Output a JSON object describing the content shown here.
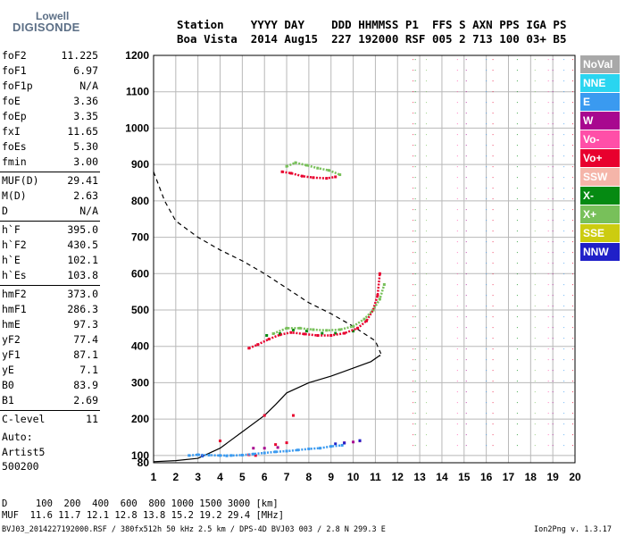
{
  "logo": {
    "top": "Lowell",
    "bottom": "DIGISONDE"
  },
  "header": {
    "line1": "Station    YYYY DAY    DDD HHMMSS P1  FFS S AXN PPS IGA PS",
    "line2": "Boa Vista  2014 Aug15  227 192000 RSF 005 2 713 100 03+ B5"
  },
  "params": [
    {
      "name": "foF2",
      "value": "11.225"
    },
    {
      "name": "foF1",
      "value": "6.97"
    },
    {
      "name": "foF1p",
      "value": "N/A"
    },
    {
      "name": "foE",
      "value": "3.36"
    },
    {
      "name": "foEp",
      "value": "3.35"
    },
    {
      "name": "fxI",
      "value": "11.65"
    },
    {
      "name": "foEs",
      "value": "5.30"
    },
    {
      "name": "fmin",
      "value": "3.00"
    },
    {
      "name": "MUF(D)",
      "value": "29.41"
    },
    {
      "name": "M(D)",
      "value": "2.63"
    },
    {
      "name": "D",
      "value": "N/A"
    },
    {
      "name": "h`F",
      "value": "395.0"
    },
    {
      "name": "h`F2",
      "value": "430.5"
    },
    {
      "name": "h`E",
      "value": "102.1"
    },
    {
      "name": "h`Es",
      "value": "103.8"
    },
    {
      "name": "hmF2",
      "value": "373.0"
    },
    {
      "name": "hmF1",
      "value": "286.3"
    },
    {
      "name": "hmE",
      "value": "97.3"
    },
    {
      "name": "yF2",
      "value": "77.4"
    },
    {
      "name": "yF1",
      "value": "87.1"
    },
    {
      "name": "yE",
      "value": "7.1"
    },
    {
      "name": "B0",
      "value": "83.9"
    },
    {
      "name": "B1",
      "value": "2.69"
    },
    {
      "name": "C-level",
      "value": "11"
    }
  ],
  "aux": {
    "line1": "Auto:",
    "line2": "Artist5",
    "line3": "500200"
  },
  "legend": [
    {
      "label": "NoVal",
      "color": "#a8a8a8"
    },
    {
      "label": "NNE",
      "color": "#2ad5f0"
    },
    {
      "label": "E",
      "color": "#3a9af0"
    },
    {
      "label": "W",
      "color": "#a8088f"
    },
    {
      "label": "Vo-",
      "color": "#ff4fa8"
    },
    {
      "label": "Vo+",
      "color": "#e8002e"
    },
    {
      "label": "SSW",
      "color": "#f5b5a9"
    },
    {
      "label": "X-",
      "color": "#058a12"
    },
    {
      "label": "X+",
      "color": "#78c05a"
    },
    {
      "label": "SSE",
      "color": "#cccc10"
    },
    {
      "label": "NNW",
      "color": "#2020c8"
    }
  ],
  "footer": {
    "d_line": "D     100  200  400  600  800 1000 1500 3000 [km]",
    "muf_line": "MUF  11.6 11.7 12.1 12.8 13.8 15.2 19.2 29.4 [MHz]",
    "file_line": "BVJ03_2014227192000.RSF / 380fx512h 50 kHz 2.5 km / DPS-4D BVJ03 003 / 2.8 N 299.3 E",
    "version": "Ion2Png v. 1.3.17"
  },
  "chart_data": {
    "type": "scatter",
    "title": "",
    "xlabel": "",
    "ylabel": "",
    "xlim": [
      1,
      20
    ],
    "ylim": [
      80,
      1200
    ],
    "x_ticks": [
      1,
      2,
      3,
      4,
      5,
      6,
      7,
      8,
      9,
      10,
      11,
      12,
      13,
      14,
      15,
      16,
      17,
      18,
      19,
      20
    ],
    "y_ticks": [
      80,
      100,
      200,
      300,
      400,
      500,
      600,
      700,
      800,
      900,
      1000,
      1100,
      1200
    ],
    "grid": true,
    "series": [
      {
        "name": "Vo+",
        "color": "#e8002e",
        "points": [
          [
            5.3,
            395
          ],
          [
            5.7,
            405
          ],
          [
            6.2,
            420
          ],
          [
            6.7,
            432
          ],
          [
            7.2,
            438
          ],
          [
            7.8,
            434
          ],
          [
            8.4,
            430
          ],
          [
            9.0,
            430
          ],
          [
            9.6,
            436
          ],
          [
            10.2,
            450
          ],
          [
            10.6,
            470
          ],
          [
            10.9,
            500
          ],
          [
            11.1,
            540
          ],
          [
            11.2,
            600
          ],
          [
            6.8,
            880
          ],
          [
            7.2,
            876
          ],
          [
            7.7,
            868
          ],
          [
            8.2,
            864
          ],
          [
            8.8,
            862
          ],
          [
            9.2,
            866
          ],
          [
            6.0,
            210
          ],
          [
            7.3,
            210
          ],
          [
            6.5,
            130
          ],
          [
            7.0,
            135
          ],
          [
            4.0,
            140
          ],
          [
            5.6,
            100
          ],
          [
            5.3,
            102
          ]
        ]
      },
      {
        "name": "X+",
        "color": "#78c05a",
        "points": [
          [
            6.4,
            435
          ],
          [
            7.0,
            450
          ],
          [
            7.6,
            450
          ],
          [
            8.2,
            446
          ],
          [
            8.8,
            444
          ],
          [
            9.4,
            446
          ],
          [
            10.0,
            455
          ],
          [
            10.5,
            475
          ],
          [
            10.9,
            500
          ],
          [
            11.2,
            530
          ],
          [
            11.4,
            570
          ],
          [
            7.0,
            895
          ],
          [
            7.4,
            905
          ],
          [
            7.9,
            898
          ],
          [
            8.4,
            890
          ],
          [
            8.9,
            884
          ],
          [
            9.4,
            872
          ]
        ]
      },
      {
        "name": "X-",
        "color": "#058a12",
        "points": [
          [
            6.1,
            430
          ],
          [
            6.7,
            435
          ],
          [
            7.3,
            445
          ],
          [
            7.9,
            442
          ],
          [
            8.6,
            436
          ],
          [
            9.2,
            436
          ],
          [
            10.0,
            442
          ]
        ]
      },
      {
        "name": "E",
        "color": "#3a9af0",
        "points": [
          [
            2.6,
            100
          ],
          [
            3.0,
            102
          ],
          [
            3.5,
            101
          ],
          [
            4.0,
            100
          ],
          [
            4.5,
            100
          ],
          [
            5.0,
            101
          ],
          [
            5.5,
            104
          ],
          [
            6.0,
            107
          ],
          [
            6.5,
            110
          ],
          [
            7.0,
            112
          ],
          [
            7.5,
            115
          ],
          [
            8.0,
            118
          ],
          [
            8.5,
            120
          ],
          [
            9.0,
            125
          ],
          [
            9.5,
            128
          ],
          [
            3.2,
            98
          ],
          [
            4.3,
            99
          ]
        ]
      },
      {
        "name": "W",
        "color": "#a8088f",
        "points": [
          [
            5.5,
            120
          ],
          [
            6.0,
            120
          ],
          [
            6.6,
            122
          ],
          [
            9.6,
            135
          ],
          [
            10.3,
            140
          ],
          [
            10.0,
            137
          ]
        ]
      },
      {
        "name": "NNW",
        "color": "#2020c8",
        "points": [
          [
            9.2,
            132
          ],
          [
            9.6,
            134
          ],
          [
            10.3,
            141
          ],
          [
            3.2,
            100
          ]
        ]
      }
    ],
    "profile_line": [
      [
        1,
        83
      ],
      [
        2,
        86
      ],
      [
        3,
        92
      ],
      [
        4,
        120
      ],
      [
        5,
        165
      ],
      [
        6,
        210
      ],
      [
        6.5,
        240
      ],
      [
        7,
        272
      ],
      [
        8,
        300
      ],
      [
        9,
        318
      ],
      [
        10,
        340
      ],
      [
        10.8,
        358
      ],
      [
        11.2,
        375
      ],
      [
        11.22,
        373
      ]
    ],
    "muf_dashed": [
      [
        1,
        880
      ],
      [
        1.5,
        800
      ],
      [
        2,
        745
      ],
      [
        3,
        700
      ],
      [
        4,
        665
      ],
      [
        5,
        635
      ],
      [
        6,
        600
      ],
      [
        7,
        560
      ],
      [
        8,
        520
      ],
      [
        9,
        490
      ],
      [
        10,
        455
      ],
      [
        11,
        415
      ],
      [
        11.25,
        380
      ]
    ]
  }
}
